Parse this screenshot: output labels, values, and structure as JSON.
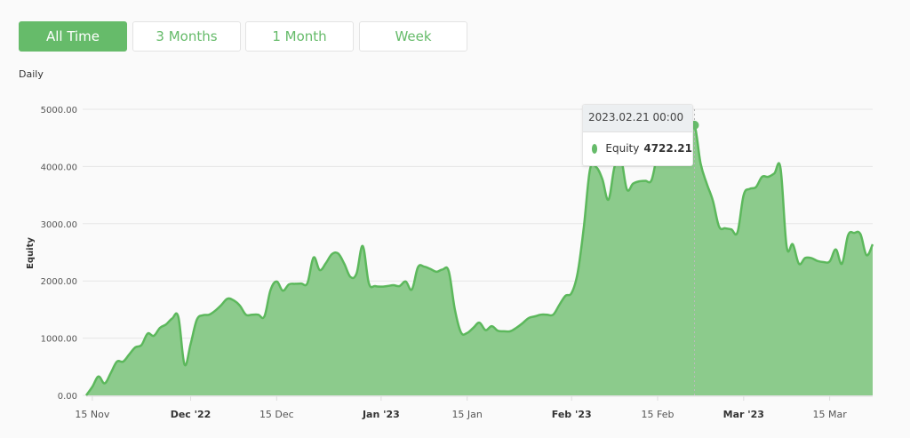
{
  "range_buttons": [
    {
      "label": "All Time",
      "active": true
    },
    {
      "label": "3 Months",
      "active": false
    },
    {
      "label": "1 Month",
      "active": false
    },
    {
      "label": "Week",
      "active": false
    }
  ],
  "colors": {
    "accent": "#66bb6a",
    "fill": "#8ccb8c",
    "line": "#5cb85c",
    "grid": "#e6e6e6"
  },
  "chart_data": {
    "type": "area",
    "title": "Daily",
    "ylabel": "Equity",
    "xlabel": "",
    "ylim": [
      0,
      5000
    ],
    "grid": true,
    "y_ticks": [
      "0.00",
      "1000.00",
      "2000.00",
      "3000.00",
      "4000.00",
      "5000.00"
    ],
    "x_ticks": [
      {
        "date": "2022-11-15",
        "label": "15 Nov",
        "bold": false
      },
      {
        "date": "2022-12-01",
        "label": "Dec '22",
        "bold": true
      },
      {
        "date": "2022-12-15",
        "label": "15 Dec",
        "bold": false
      },
      {
        "date": "2023-01-01",
        "label": "Jan '23",
        "bold": true
      },
      {
        "date": "2023-01-15",
        "label": "15 Jan",
        "bold": false
      },
      {
        "date": "2023-02-01",
        "label": "Feb '23",
        "bold": true
      },
      {
        "date": "2023-02-15",
        "label": "15 Feb",
        "bold": false
      },
      {
        "date": "2023-03-01",
        "label": "Mar '23",
        "bold": true
      },
      {
        "date": "2023-03-15",
        "label": "15 Mar",
        "bold": false
      }
    ],
    "series": [
      {
        "name": "Equity",
        "start": "2022-11-14",
        "step": "1 day",
        "values": [
          0,
          150,
          330,
          210,
          390,
          590,
          590,
          715,
          840,
          880,
          1080,
          1040,
          1180,
          1240,
          1345,
          1370,
          540,
          900,
          1320,
          1400,
          1410,
          1480,
          1580,
          1690,
          1660,
          1570,
          1410,
          1410,
          1410,
          1380,
          1840,
          1990,
          1830,
          1940,
          1950,
          1955,
          1960,
          2410,
          2190,
          2310,
          2470,
          2480,
          2300,
          2070,
          2130,
          2610,
          1960,
          1910,
          1900,
          1910,
          1925,
          1910,
          1990,
          1850,
          2240,
          2250,
          2210,
          2160,
          2200,
          2170,
          1500,
          1100,
          1090,
          1180,
          1270,
          1140,
          1210,
          1130,
          1120,
          1120,
          1180,
          1260,
          1350,
          1380,
          1410,
          1410,
          1410,
          1580,
          1740,
          1790,
          2150,
          2950,
          3950,
          3990,
          3780,
          3420,
          4000,
          4150,
          3600,
          3700,
          3740,
          3750,
          3760,
          4200,
          4250,
          4100,
          4150,
          4300,
          4500,
          4722.21,
          4050,
          3700,
          3400,
          2950,
          2920,
          2900,
          2850,
          3500,
          3610,
          3640,
          3820,
          3820,
          3880,
          3970,
          2600,
          2640,
          2300,
          2400,
          2400,
          2350,
          2330,
          2340,
          2550,
          2300,
          2800,
          2840,
          2820,
          2450,
          2640
        ]
      }
    ],
    "tooltip": {
      "date": "2023.02.21 00:00",
      "series": "Equity",
      "value": "4722.21"
    }
  }
}
